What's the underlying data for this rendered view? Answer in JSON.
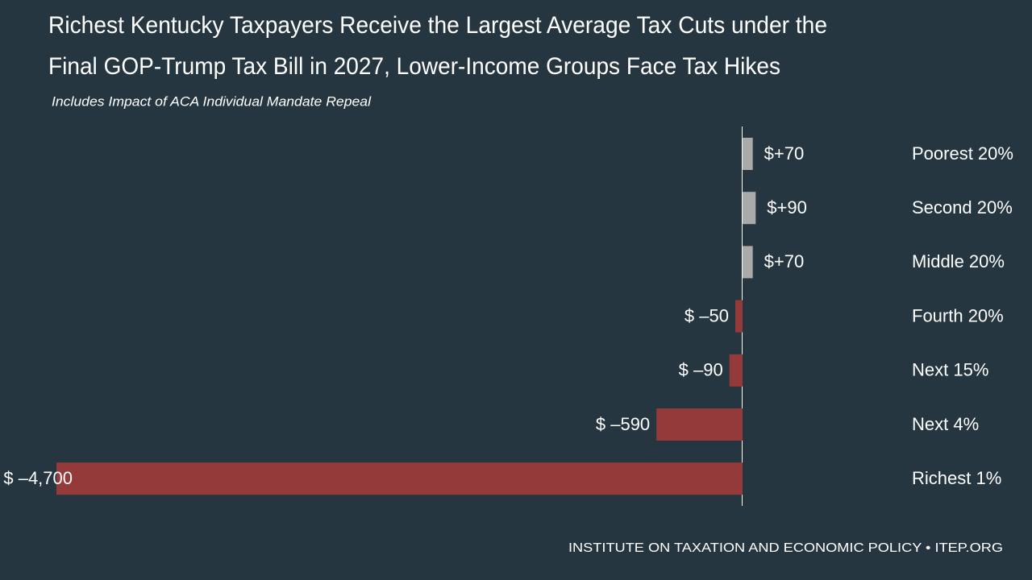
{
  "chart_data": {
    "type": "bar",
    "orientation": "horizontal",
    "title": [
      "Richest Kentucky Taxpayers Receive the Largest Average Tax Cuts under the",
      "Final GOP-Trump Tax Bill in 2027, Lower-Income Groups Face Tax Hikes"
    ],
    "subtitle": "Includes Impact of ACA Individual Mandate Repeal",
    "categories": [
      "Poorest 20%",
      "Second 20%",
      "Middle 20%",
      "Fourth 20%",
      "Next 15%",
      "Next 4%",
      "Richest 1%"
    ],
    "values": [
      70,
      90,
      70,
      -50,
      -90,
      -590,
      -4700
    ],
    "value_labels": [
      "$+70",
      "$+90",
      "$+70",
      "$ –50",
      "$ –90",
      "$ –590",
      "$ –4,700"
    ],
    "positive_color": "#aaaaaa",
    "negative_color": "#943a3a",
    "source": "INSTITUTE ON TAXATION AND ECONOMIC POLICY • ITEP.ORG"
  }
}
